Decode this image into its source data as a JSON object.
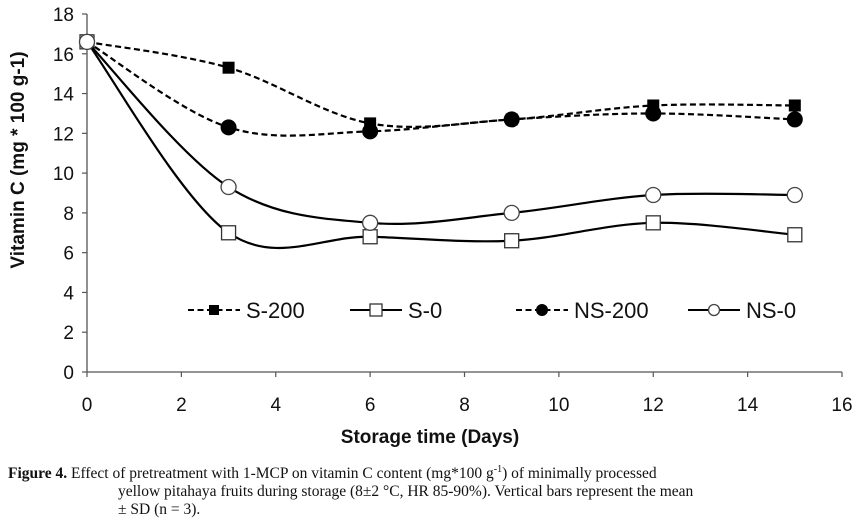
{
  "chart_data": {
    "type": "line",
    "title": "",
    "xlabel": "Storage time (Days)",
    "ylabel": "Vitamin C (mg * 100 g-1)",
    "xlim": [
      0,
      16
    ],
    "ylim": [
      0,
      18
    ],
    "xticks": [
      0,
      2,
      4,
      6,
      8,
      10,
      12,
      14,
      16
    ],
    "yticks": [
      0,
      2,
      4,
      6,
      8,
      10,
      12,
      14,
      16,
      18
    ],
    "grid": false,
    "legend_position": "bottom-center-inside",
    "x": [
      0,
      3,
      6,
      9,
      12,
      15
    ],
    "series": [
      {
        "name": "S-200",
        "marker": "filled-square",
        "line": "dashed",
        "values": [
          16.6,
          15.3,
          12.5,
          12.7,
          13.4,
          13.4
        ]
      },
      {
        "name": "S-0",
        "marker": "open-square",
        "line": "solid",
        "values": [
          16.6,
          7.0,
          6.8,
          6.6,
          7.5,
          6.9
        ]
      },
      {
        "name": "NS-200",
        "marker": "filled-circle",
        "line": "dashed",
        "values": [
          16.6,
          12.3,
          12.1,
          12.7,
          13.0,
          12.7
        ]
      },
      {
        "name": "NS-0",
        "marker": "open-circle",
        "line": "solid",
        "values": [
          16.6,
          9.3,
          7.5,
          8.0,
          8.9,
          8.9
        ]
      }
    ]
  },
  "caption": {
    "label": "Figure 4.",
    "line1": " Effect of pretreatment with 1-MCP on vitamin C content (mg*100 g",
    "sup": "-1",
    "line1_end": ") of minimally processed",
    "line2": "yellow pitahaya fruits during storage (8±2 °C, HR 85-90%). Vertical bars represent the mean",
    "line3": "± SD (n = 3)."
  }
}
